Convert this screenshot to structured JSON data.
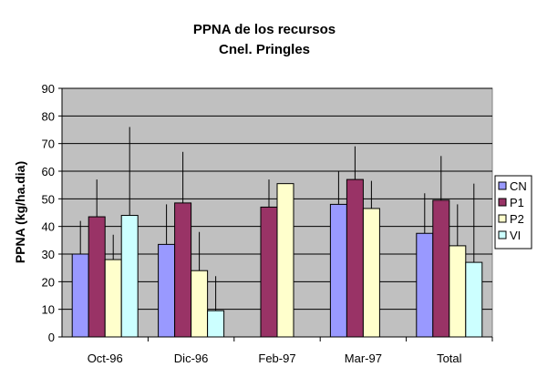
{
  "chart_data": {
    "type": "bar",
    "title": [
      "PPNA de los recursos",
      "Cnel. Pringles"
    ],
    "xlabel": "",
    "ylabel": "PPNA (kg/ha.dia)",
    "ylim": [
      0,
      90
    ],
    "yticks": [
      0,
      10,
      20,
      30,
      40,
      50,
      60,
      70,
      80,
      90
    ],
    "grid": true,
    "legend_position": "right",
    "categories": [
      "Oct-96",
      "Dic-96",
      "Feb-97",
      "Mar-97",
      "Total"
    ],
    "series": [
      {
        "name": "CN",
        "color": "#9999ff",
        "values": [
          30,
          33.5,
          null,
          48,
          37.5
        ],
        "error": [
          42,
          48,
          null,
          60,
          52
        ]
      },
      {
        "name": "P1",
        "color": "#993366",
        "values": [
          43.5,
          48.5,
          47,
          57,
          49.5
        ],
        "error": [
          57,
          67,
          57,
          69,
          65.5
        ]
      },
      {
        "name": "P2",
        "color": "#ffffcc",
        "values": [
          28,
          24,
          55.5,
          46.5,
          33
        ],
        "error": [
          37,
          38,
          null,
          56.5,
          48
        ]
      },
      {
        "name": "VI",
        "color": "#ccffff",
        "values": [
          44,
          9.5,
          null,
          null,
          27
        ],
        "error": [
          76,
          22,
          null,
          null,
          55.5
        ]
      }
    ],
    "colors": {
      "plot_background": "#c0c0c0",
      "gridline": "#000000"
    }
  }
}
